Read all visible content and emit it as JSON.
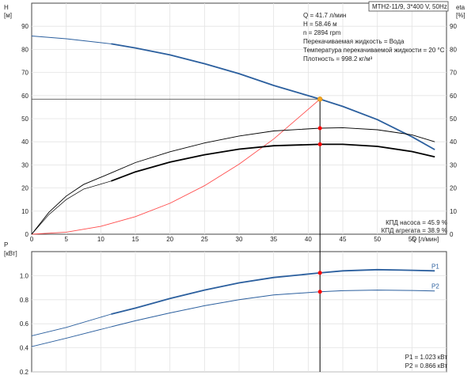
{
  "header": {
    "model": "MTH2-11/9, 3*400 V, 50Hz"
  },
  "info_lines": [
    "Q = 41.7 л/мин",
    "H = 58.46 м",
    "n = 2894 rpm",
    "Перекачиваемая жидкость = Вода",
    "Температура перекачиваемой жидкости = 20 °C",
    "Плотность = 998.2 кг/м³"
  ],
  "efficiency_lines": [
    "КПД насоса = 45.9 %",
    "КПД агрегата = 38.9 %"
  ],
  "power_lines": [
    "P1 = 1.023 кВт",
    "P2 = 0.866 кВт"
  ],
  "colors": {
    "head": "#2b5f9e",
    "system": "#ff4c4c",
    "efficiency": "#000000",
    "op_point": "#f5a623",
    "marker": "#ff0000",
    "grid": "#e3e3e3"
  },
  "chart_data": [
    {
      "type": "line",
      "name": "head-efficiency",
      "xlabel": "Q [л/мин]",
      "ylabel_left": "H [м]",
      "ylabel_right": "eta [%]",
      "xlim": [
        0,
        60
      ],
      "ylim": [
        0,
        100
      ],
      "x_ticks": [
        0,
        5,
        10,
        15,
        20,
        25,
        30,
        35,
        40,
        45,
        50,
        55
      ],
      "y_ticks": [
        0,
        10,
        20,
        30,
        40,
        50,
        60,
        70,
        80,
        90
      ],
      "series": [
        {
          "key": "H",
          "x": [
            0,
            5,
            11.5,
            15,
            20,
            25,
            30,
            35,
            41.7,
            45,
            50,
            55,
            58.3
          ],
          "y": [
            85.8,
            84.6,
            82.4,
            80.6,
            77.6,
            73.8,
            69.5,
            64.4,
            58.46,
            55.3,
            49.6,
            42.2,
            36.6
          ]
        },
        {
          "key": "system",
          "x": [
            0,
            5,
            10,
            15,
            20,
            25,
            30,
            35,
            41.7
          ],
          "y": [
            0,
            0.9,
            3.4,
            7.6,
            13.4,
            21.0,
            30.3,
            41.2,
            58.46
          ]
        },
        {
          "key": "eta_pump",
          "x": [
            0,
            2.5,
            5,
            7.5,
            11.5,
            15,
            20,
            25,
            30,
            35,
            41.7,
            45,
            50,
            55,
            58.3
          ],
          "y": [
            0,
            9.5,
            16.5,
            21.5,
            26.5,
            31.0,
            35.7,
            39.5,
            42.5,
            44.7,
            45.9,
            46.1,
            45.2,
            43.0,
            40.0
          ]
        },
        {
          "key": "eta_unit",
          "x": [
            0,
            2.5,
            5,
            7.5,
            11.5,
            15,
            20,
            25,
            30,
            35,
            41.7,
            45,
            50,
            55,
            58.3
          ],
          "y": [
            0,
            8.5,
            15.0,
            19.5,
            23.0,
            27.0,
            31.2,
            34.4,
            36.8,
            38.3,
            38.9,
            38.9,
            38.0,
            35.8,
            33.5
          ]
        }
      ],
      "points": [
        {
          "key": "op",
          "x": 41.7,
          "y": 58.46
        },
        {
          "key": "eta_pump_pt",
          "x": 41.7,
          "y": 45.9
        },
        {
          "key": "eta_unit_pt",
          "x": 41.7,
          "y": 38.9
        }
      ]
    },
    {
      "type": "line",
      "name": "power",
      "ylabel": "P [кВт]",
      "xlim": [
        0,
        60
      ],
      "ylim": [
        0.2,
        1.2
      ],
      "y_ticks": [
        0.2,
        0.4,
        0.6,
        0.8,
        1.0
      ],
      "y_tick_labels": [
        "0.2",
        "0.4",
        "0.6",
        "0.8",
        "1.0"
      ],
      "series": [
        {
          "name": "P1",
          "x": [
            0,
            5,
            11.5,
            15,
            20,
            25,
            30,
            35,
            41.7,
            45,
            50,
            55,
            58.3
          ],
          "y": [
            0.5,
            0.57,
            0.68,
            0.73,
            0.81,
            0.88,
            0.94,
            0.985,
            1.023,
            1.04,
            1.05,
            1.045,
            1.04
          ]
        },
        {
          "name": "P2",
          "x": [
            0,
            5,
            11.5,
            15,
            20,
            25,
            30,
            35,
            41.7,
            45,
            50,
            55,
            58.3
          ],
          "y": [
            0.41,
            0.48,
            0.575,
            0.625,
            0.69,
            0.75,
            0.8,
            0.84,
            0.866,
            0.875,
            0.88,
            0.877,
            0.873
          ]
        }
      ],
      "points": [
        {
          "key": "p1_pt",
          "x": 41.7,
          "y": 1.023
        },
        {
          "key": "p2_pt",
          "x": 41.7,
          "y": 0.866
        }
      ]
    }
  ]
}
